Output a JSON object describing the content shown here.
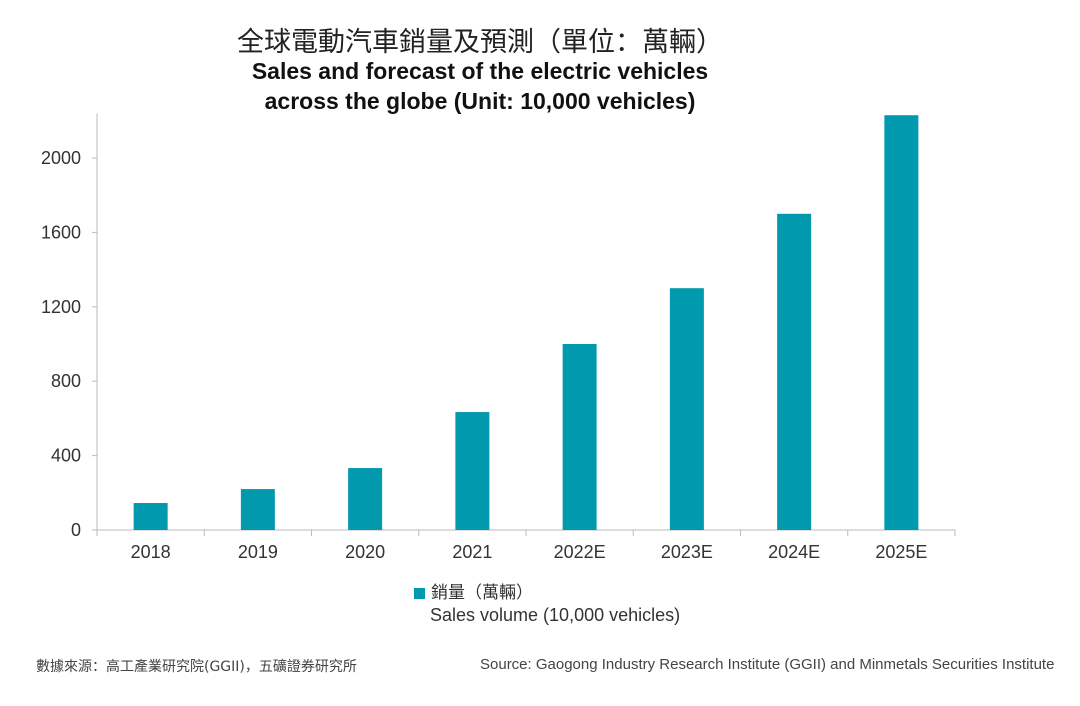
{
  "chart_data": {
    "type": "bar",
    "title": "全球電動汽車銷量及預測（單位：萬輛）",
    "subtitle": "Sales and forecast of the electric vehicles across the globe (Unit: 10,000 vehicles)",
    "subtitle_lines": [
      "Sales and forecast of the electric vehicles",
      "across the globe (Unit: 10,000 vehicles)"
    ],
    "categories": [
      "2018",
      "2019",
      "2020",
      "2021",
      "2022E",
      "2023E",
      "2024E",
      "2025E"
    ],
    "series": [
      {
        "name": "銷量（萬輛） Sales volume (10,000 vehicles)",
        "values": [
          145,
          220,
          333,
          634,
          1000,
          1300,
          1700,
          2230
        ],
        "color": "#0099ad"
      }
    ],
    "yticks": [
      0,
      400,
      800,
      1200,
      1600,
      2000
    ],
    "ylim": [
      0,
      2240
    ],
    "grid": false,
    "legend": {
      "position": "bottom",
      "label_zh": "銷量（萬輛）",
      "label_en": "Sales volume (10,000 vehicles)"
    }
  },
  "source": {
    "zh": "數據來源：高工產業研究院(GGII)，五礦證券研究所",
    "en": "Source: Gaogong Industry Research Institute (GGII) and Minmetals Securities Institute"
  }
}
